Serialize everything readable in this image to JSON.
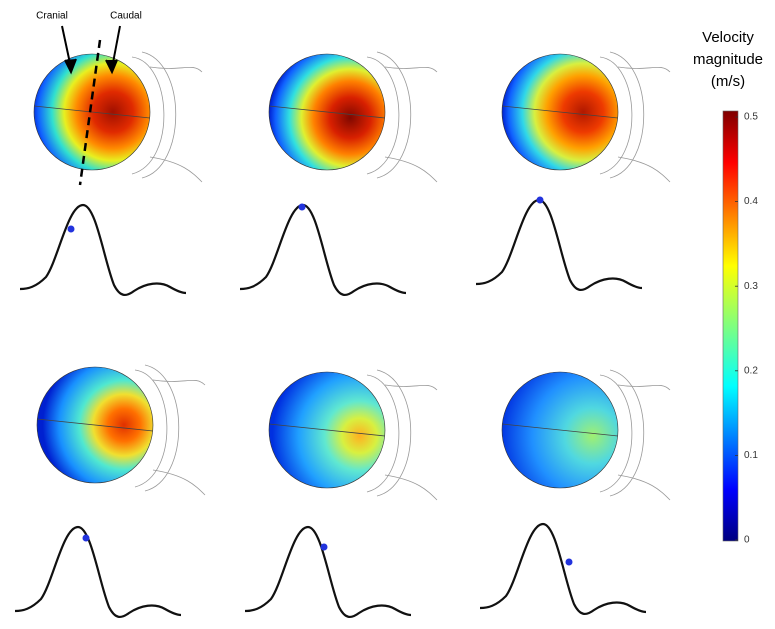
{
  "annotations": {
    "cranial": "Cranial",
    "caudal": "Caudal"
  },
  "colorbar": {
    "title": [
      "Velocity",
      "magnitude",
      "(m/s)"
    ],
    "lim": [
      0,
      0.5
    ],
    "ticks": [
      0,
      0.1,
      0.2,
      0.3,
      0.4,
      0.5
    ]
  }
}
